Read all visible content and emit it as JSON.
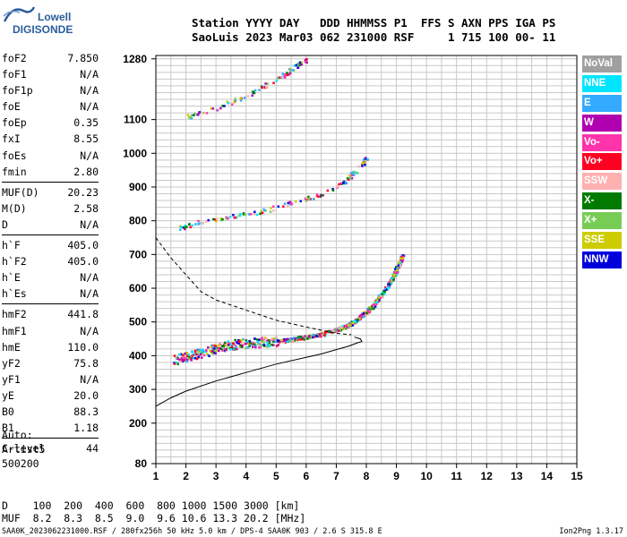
{
  "logo": {
    "line1": "Lowell",
    "line2": "DIGISONDE"
  },
  "header": {
    "line1": "Station YYYY DAY   DDD HHMMSS P1  FFS S AXN PPS IGA PS",
    "line2": "SaoLuis 2023 Mar03 062 231000 RSF     1 715 100 00- 11"
  },
  "params": {
    "g1": [
      [
        "foF2",
        "7.850"
      ],
      [
        "foF1",
        "N/A"
      ],
      [
        "foF1p",
        "N/A"
      ],
      [
        "foE",
        "N/A"
      ],
      [
        "foEp",
        "0.35"
      ],
      [
        "fxI",
        "8.55"
      ],
      [
        "foEs",
        "N/A"
      ],
      [
        "fmin",
        "2.80"
      ]
    ],
    "g2": [
      [
        "MUF(D)",
        "20.23"
      ],
      [
        "M(D)",
        "2.58"
      ],
      [
        "D",
        "N/A"
      ]
    ],
    "g3": [
      [
        "h`F",
        "405.0"
      ],
      [
        "h`F2",
        "405.0"
      ],
      [
        "h`E",
        "N/A"
      ],
      [
        "h`Es",
        "N/A"
      ]
    ],
    "g4": [
      [
        "hmF2",
        "441.8"
      ],
      [
        "hmF1",
        "N/A"
      ],
      [
        "hmE",
        "110.0"
      ],
      [
        "yF2",
        "75.8"
      ],
      [
        "yF1",
        "N/A"
      ],
      [
        "yE",
        "20.0"
      ],
      [
        "B0",
        "88.3"
      ],
      [
        "B1",
        "1.18"
      ]
    ],
    "g5": [
      [
        "C-level",
        "44"
      ]
    ]
  },
  "auto": {
    "line1": "Auto:",
    "line2": "Artist5",
    "line3": "500200"
  },
  "legend": [
    {
      "label": "NoVal",
      "color": "#a0a0a0"
    },
    {
      "label": "NNE",
      "color": "#00e5ff"
    },
    {
      "label": "E",
      "color": "#33aaff"
    },
    {
      "label": "W",
      "color": "#b000b0"
    },
    {
      "label": "Vo-",
      "color": "#ff33aa"
    },
    {
      "label": "Vo+",
      "color": "#ff0022"
    },
    {
      "label": "SSW",
      "color": "#ffb0b0"
    },
    {
      "label": "X-",
      "color": "#007a00"
    },
    {
      "label": "X+",
      "color": "#77cc55"
    },
    {
      "label": "SSE",
      "color": "#cccc00"
    },
    {
      "label": "NNW",
      "color": "#0000dd"
    }
  ],
  "dmuf": {
    "line1": "D    100  200  400  600  800 1000 1500 3000 [km]",
    "line2": "MUF  8.2  8.3  8.5  9.0  9.6 10.6 13.3 20.2 [MHz]"
  },
  "footer": "SAA0K_2023062231000.RSF / 280fx256h 50 kHz 5.0 km / DPS-4 SAA0K 903 / 2.6 S 315.8 E",
  "version": "Ion2Png 1.3.17",
  "chart_data": {
    "type": "scatter",
    "xlim": [
      1,
      15
    ],
    "ylim": [
      80,
      1290
    ],
    "x_ticks": [
      1,
      2,
      3,
      4,
      5,
      6,
      7,
      8,
      9,
      10,
      11,
      12,
      13,
      14,
      15
    ],
    "y_ticks": [
      80,
      200,
      300,
      400,
      500,
      600,
      700,
      800,
      900,
      1000,
      1100,
      1280
    ],
    "grid": true,
    "series": [
      {
        "name": "F-trace",
        "points": [
          [
            1.6,
            390
          ],
          [
            2.0,
            400
          ],
          [
            2.5,
            410
          ],
          [
            3.0,
            425
          ],
          [
            3.5,
            435
          ],
          [
            4.0,
            440
          ],
          [
            4.5,
            442
          ],
          [
            5.0,
            445
          ],
          [
            5.5,
            450
          ],
          [
            6.0,
            458
          ],
          [
            6.5,
            465
          ],
          [
            7.0,
            480
          ],
          [
            7.3,
            490
          ],
          [
            7.6,
            505
          ],
          [
            7.9,
            525
          ],
          [
            8.2,
            550
          ],
          [
            8.5,
            585
          ],
          [
            8.8,
            625
          ],
          [
            9.0,
            660
          ],
          [
            9.2,
            700
          ]
        ]
      },
      {
        "name": "F-2hop",
        "points": [
          [
            1.7,
            780
          ],
          [
            2.5,
            800
          ],
          [
            3.5,
            815
          ],
          [
            4.5,
            830
          ],
          [
            5.5,
            855
          ],
          [
            6.5,
            880
          ],
          [
            7.3,
            920
          ],
          [
            7.8,
            965
          ],
          [
            8.0,
            990
          ]
        ]
      },
      {
        "name": "F-3hop",
        "points": [
          [
            2.0,
            1110
          ],
          [
            3.0,
            1135
          ],
          [
            4.0,
            1175
          ],
          [
            5.0,
            1220
          ],
          [
            5.5,
            1250
          ],
          [
            6.0,
            1280
          ]
        ]
      }
    ],
    "profile": {
      "name": "profile",
      "points": [
        [
          1,
          250
        ],
        [
          1.5,
          275
        ],
        [
          2,
          295
        ],
        [
          3,
          325
        ],
        [
          4,
          350
        ],
        [
          5,
          375
        ],
        [
          6,
          395
        ],
        [
          6.5,
          405
        ],
        [
          7,
          418
        ],
        [
          7.4,
          428
        ],
        [
          7.7,
          438
        ],
        [
          7.85,
          442
        ],
        [
          7.8,
          450
        ],
        [
          7.6,
          455
        ]
      ]
    },
    "dashed": {
      "name": "dashed",
      "points": [
        [
          1,
          750
        ],
        [
          1.5,
          690
        ],
        [
          2,
          640
        ],
        [
          2.5,
          590
        ],
        [
          3,
          565
        ],
        [
          4,
          535
        ],
        [
          5,
          505
        ],
        [
          6,
          485
        ],
        [
          7,
          466
        ],
        [
          7.5,
          462
        ]
      ]
    }
  }
}
